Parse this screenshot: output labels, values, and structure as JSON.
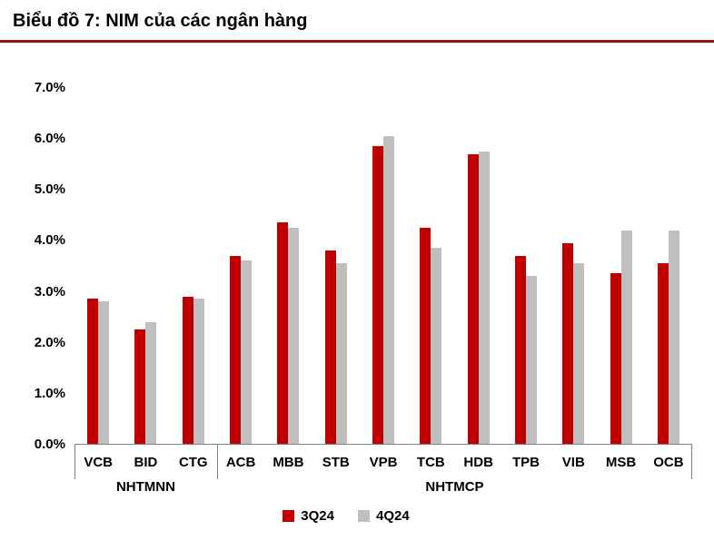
{
  "title": "Biểu đồ 7: NIM của các ngân hàng",
  "colors": {
    "title_rule": "#8B1414",
    "axis_line": "#808080",
    "series_3q24": "#C00000",
    "series_4q24": "#BFBFBF"
  },
  "chart_data": {
    "type": "bar",
    "categories": [
      "VCB",
      "BID",
      "CTG",
      "ACB",
      "MBB",
      "STB",
      "VPB",
      "TCB",
      "HDB",
      "TPB",
      "VIB",
      "MSB",
      "OCB"
    ],
    "groups": [
      {
        "label": "NHTMNN",
        "span": 3
      },
      {
        "label": "NHTMCP",
        "span": 10
      }
    ],
    "series": [
      {
        "name": "3Q24",
        "color": "#C00000",
        "values": [
          2.85,
          2.25,
          2.9,
          3.7,
          4.35,
          3.8,
          5.85,
          4.25,
          5.7,
          3.7,
          3.95,
          3.35,
          3.55
        ]
      },
      {
        "name": "4Q24",
        "color": "#BFBFBF",
        "values": [
          2.8,
          2.4,
          2.85,
          3.6,
          4.25,
          3.55,
          6.05,
          3.85,
          5.75,
          3.3,
          3.55,
          4.2,
          4.2
        ]
      }
    ],
    "title": "Biểu đồ 7: NIM của các ngân hàng",
    "xlabel": "",
    "ylabel": "",
    "ylim": [
      0,
      7
    ],
    "y_ticks": [
      "0.0%",
      "1.0%",
      "2.0%",
      "3.0%",
      "4.0%",
      "5.0%",
      "6.0%",
      "7.0%"
    ],
    "grid": false,
    "legend_position": "bottom"
  }
}
